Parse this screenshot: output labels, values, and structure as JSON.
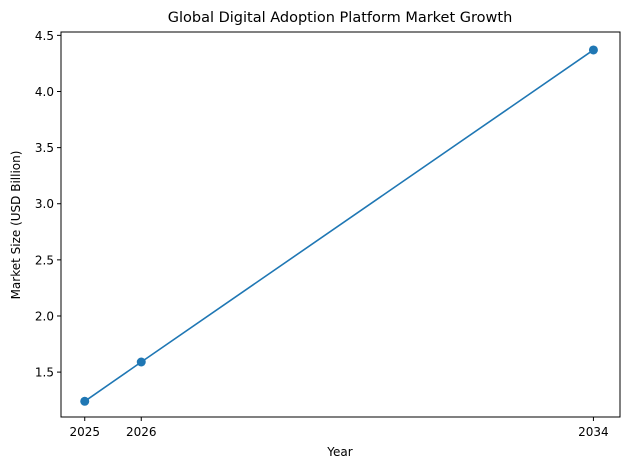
{
  "chart_data": {
    "type": "line",
    "title": "Global Digital Adoption Platform Market Growth",
    "xlabel": "Year",
    "ylabel": "Market Size (USD Billion)",
    "x": [
      2025,
      2026,
      2034
    ],
    "series": [
      {
        "name": "Market Size",
        "values": [
          1.24,
          1.59,
          4.37
        ],
        "color": "#1f77b4",
        "marker": "circle"
      }
    ],
    "xticks": [
      "2025",
      "2026",
      "2034"
    ],
    "yticks": [
      "1.5",
      "2.0",
      "2.5",
      "3.0",
      "3.5",
      "4.0",
      "4.5"
    ],
    "xlim": [
      2024.58,
      2034.47
    ],
    "ylim": [
      1.1,
      4.53
    ],
    "grid": false,
    "legend": null
  }
}
